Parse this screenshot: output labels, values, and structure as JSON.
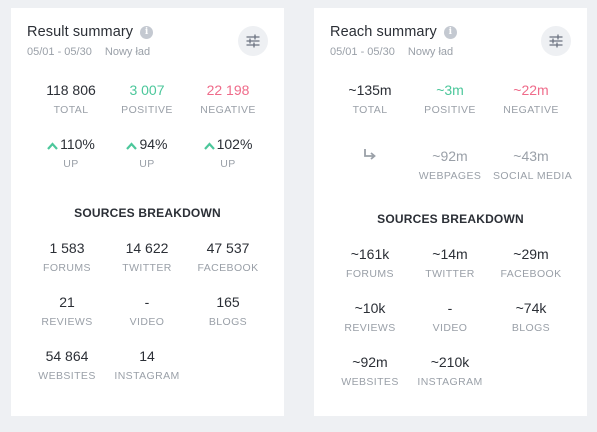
{
  "result": {
    "title": "Result summary",
    "date_range": "05/01 - 05/30",
    "project": "Nowy ład",
    "totals": [
      {
        "value": "118 806",
        "label": "TOTAL"
      },
      {
        "value": "3 007",
        "label": "POSITIVE"
      },
      {
        "value": "22 198",
        "label": "NEGATIVE"
      }
    ],
    "changes": [
      {
        "value": "110%",
        "label": "UP"
      },
      {
        "value": "94%",
        "label": "UP"
      },
      {
        "value": "102%",
        "label": "UP"
      }
    ],
    "breakdown_heading": "SOURCES BREAKDOWN",
    "sources": [
      {
        "value": "1 583",
        "label": "FORUMS"
      },
      {
        "value": "14 622",
        "label": "TWITTER"
      },
      {
        "value": "47 537",
        "label": "FACEBOOK"
      },
      {
        "value": "21",
        "label": "REVIEWS"
      },
      {
        "value": "-",
        "label": "VIDEO"
      },
      {
        "value": "165",
        "label": "BLOGS"
      },
      {
        "value": "54 864",
        "label": "WEBSITES"
      },
      {
        "value": "14",
        "label": "INSTAGRAM"
      }
    ]
  },
  "reach": {
    "title": "Reach summary",
    "date_range": "05/01 - 05/30",
    "project": "Nowy ład",
    "totals": [
      {
        "value": "~135m",
        "label": "TOTAL"
      },
      {
        "value": "~3m",
        "label": "POSITIVE"
      },
      {
        "value": "~22m",
        "label": "NEGATIVE"
      }
    ],
    "split": [
      {
        "value": "~92m",
        "label": "WEBPAGES"
      },
      {
        "value": "~43m",
        "label": "SOCIAL MEDIA"
      }
    ],
    "breakdown_heading": "SOURCES BREAKDOWN",
    "sources": [
      {
        "value": "~161k",
        "label": "FORUMS"
      },
      {
        "value": "~14m",
        "label": "TWITTER"
      },
      {
        "value": "~29m",
        "label": "FACEBOOK"
      },
      {
        "value": "~10k",
        "label": "REVIEWS"
      },
      {
        "value": "-",
        "label": "VIDEO"
      },
      {
        "value": "~74k",
        "label": "BLOGS"
      },
      {
        "value": "~92m",
        "label": "WEBSITES"
      },
      {
        "value": "~210k",
        "label": "INSTAGRAM"
      }
    ]
  },
  "colors": {
    "positive": "#4cc79b",
    "negative": "#ef6b8a",
    "muted": "#9aa0a8"
  },
  "icons": {
    "info": "info-icon",
    "settings": "sliders-icon",
    "change": "chevron-up-icon",
    "split": "reply-arrow-icon"
  }
}
